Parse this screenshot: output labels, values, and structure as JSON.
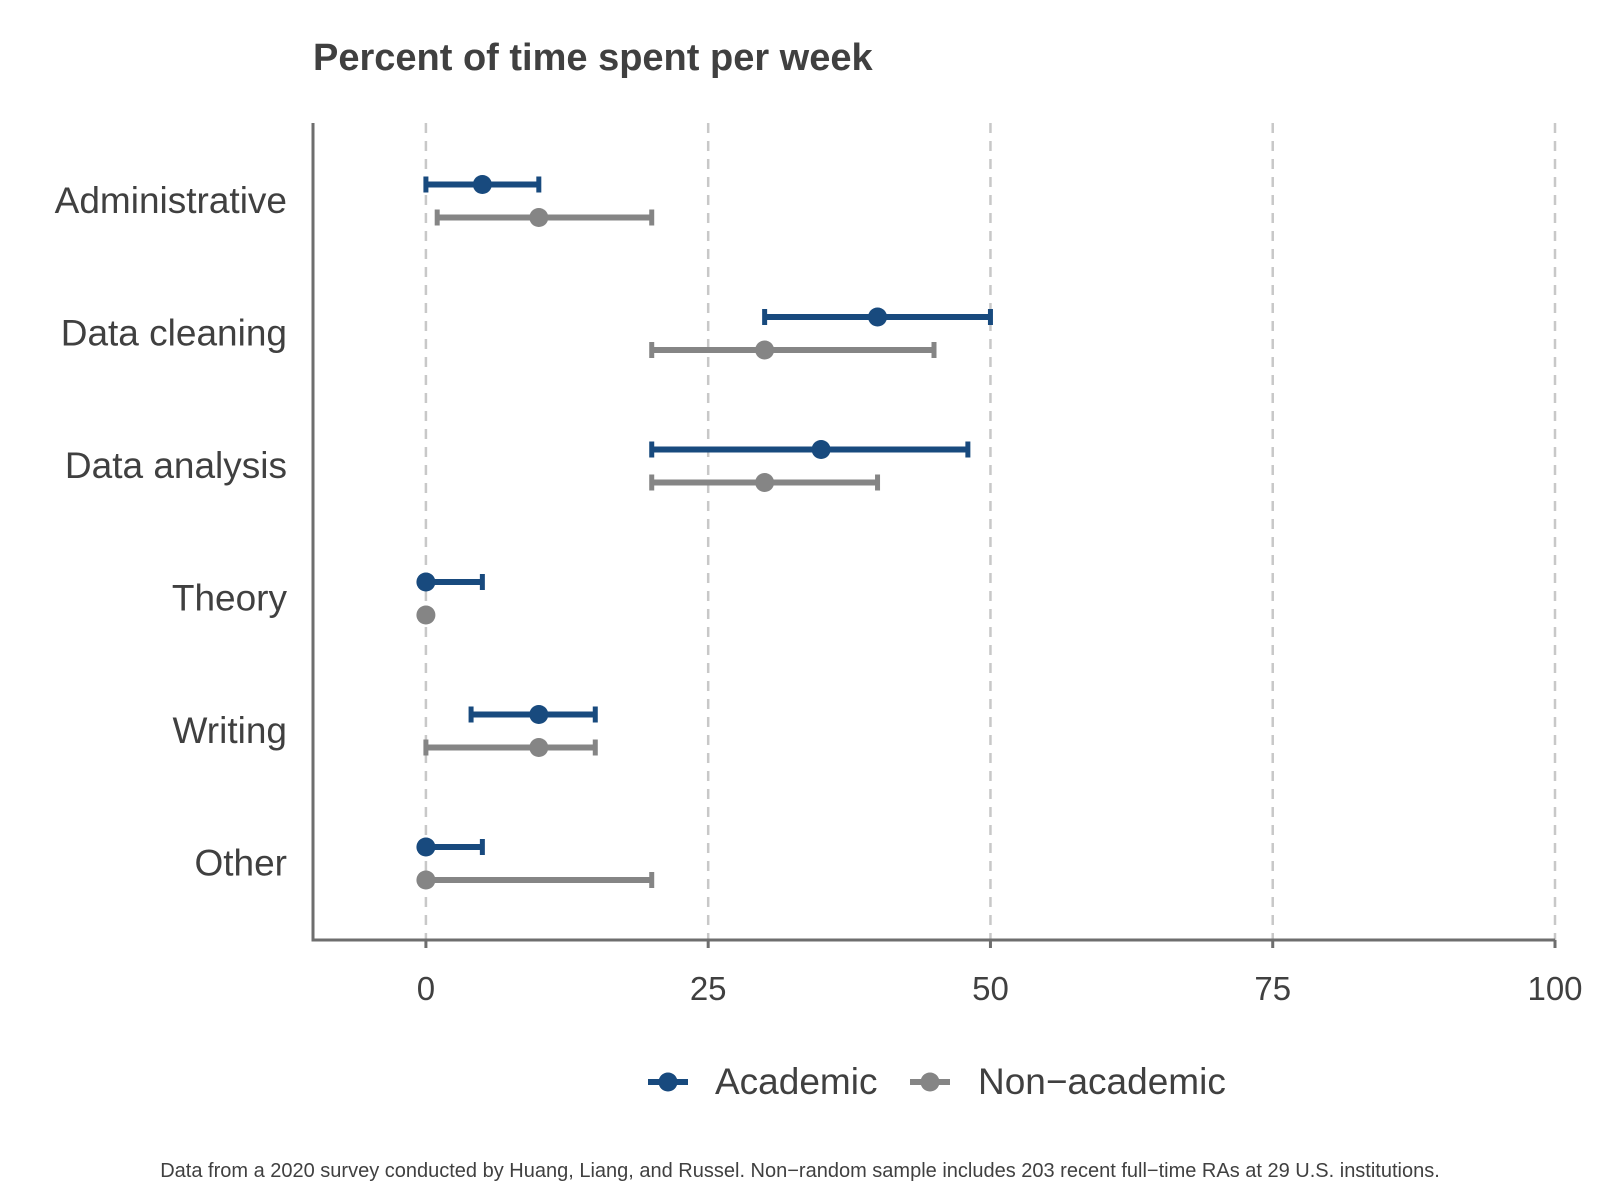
{
  "chart_data": {
    "type": "dot-interval",
    "title": "Percent of time spent per week",
    "categories": [
      "Administrative",
      "Data cleaning",
      "Data analysis",
      "Theory",
      "Writing",
      "Other"
    ],
    "x_ticks": [
      0,
      25,
      50,
      75,
      100
    ],
    "xlim": [
      -10,
      100
    ],
    "grid": "vertical dashed",
    "legend_position": "bottom",
    "series": [
      {
        "name": "Academic",
        "color": "#184a7e",
        "points": [
          {
            "category": "Administrative",
            "value": 5,
            "low": 0,
            "high": 10
          },
          {
            "category": "Data cleaning",
            "value": 40,
            "low": 30,
            "high": 50
          },
          {
            "category": "Data analysis",
            "value": 35,
            "low": 20,
            "high": 48
          },
          {
            "category": "Theory",
            "value": 0,
            "low": 0,
            "high": 5
          },
          {
            "category": "Writing",
            "value": 10,
            "low": 4,
            "high": 15
          },
          {
            "category": "Other",
            "value": 0,
            "low": 0,
            "high": 5
          }
        ]
      },
      {
        "name": "Non−academic",
        "color": "#858585",
        "points": [
          {
            "category": "Administrative",
            "value": 10,
            "low": 1,
            "high": 20
          },
          {
            "category": "Data cleaning",
            "value": 30,
            "low": 20,
            "high": 45
          },
          {
            "category": "Data analysis",
            "value": 30,
            "low": 20,
            "high": 40
          },
          {
            "category": "Theory",
            "value": 0,
            "low": 0,
            "high": 0
          },
          {
            "category": "Writing",
            "value": 10,
            "low": 0,
            "high": 15
          },
          {
            "category": "Other",
            "value": 0,
            "low": 0,
            "high": 20
          }
        ]
      }
    ],
    "caption": "Data from a 2020 survey conducted by Huang, Liang, and Russel. Non−random sample includes 203 recent full−time RAs at 29 U.S. institutions."
  },
  "colors": {
    "text": "#404040",
    "axis": "#6e6e6e",
    "grid": "#c8c8c8",
    "background": "#ffffff"
  }
}
